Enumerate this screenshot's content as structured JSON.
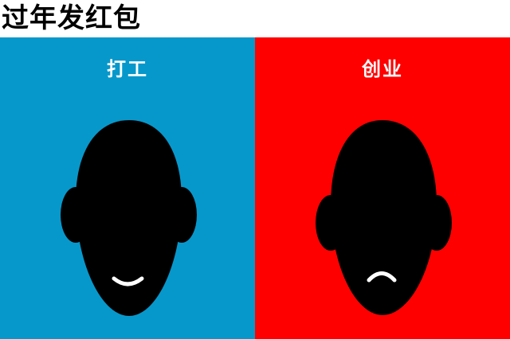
{
  "title": "过年发红包",
  "panels": [
    {
      "label": "打工",
      "background": "#0798cb",
      "expression": "smile"
    },
    {
      "label": "创业",
      "background": "#ff0000",
      "expression": "frown"
    }
  ],
  "colors": {
    "head": "#000000",
    "mouth": "#ffffff",
    "label_text": "#ffffff"
  }
}
